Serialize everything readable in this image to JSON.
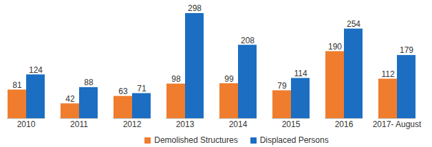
{
  "chart_data": {
    "type": "bar",
    "categories": [
      "2010",
      "2011",
      "2012",
      "2013",
      "2014",
      "2015",
      "2016",
      "2017- August"
    ],
    "series": [
      {
        "name": "Demolished Structures",
        "color": "#ef7d2d",
        "values": [
          81,
          42,
          63,
          98,
          99,
          79,
          190,
          112
        ]
      },
      {
        "name": "Displaced Persons",
        "color": "#1b6ec2",
        "values": [
          124,
          88,
          71,
          298,
          208,
          114,
          254,
          179
        ]
      }
    ],
    "ylim": [
      0,
      300
    ],
    "data_labels": true,
    "tick_labels": "x",
    "legend": "bottom"
  }
}
